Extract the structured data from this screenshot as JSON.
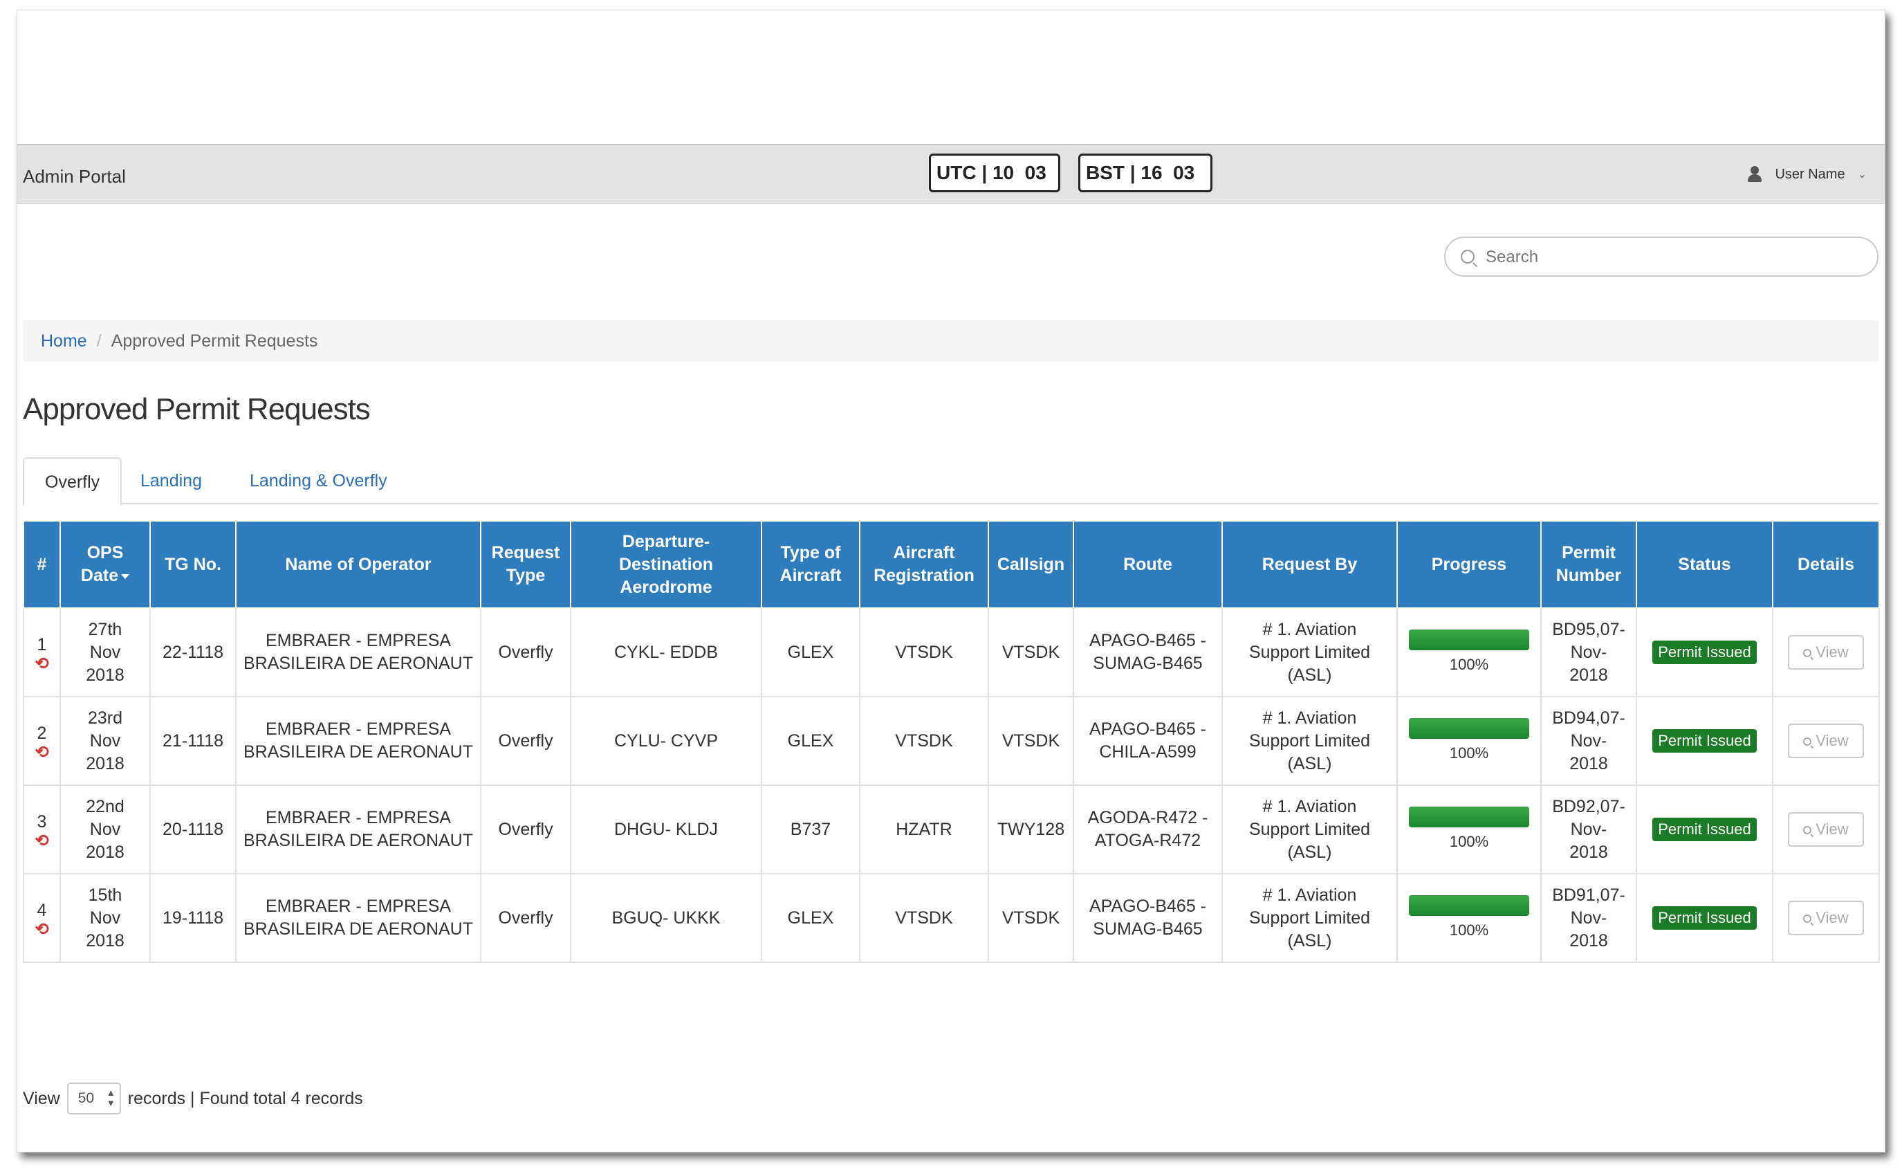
{
  "header": {
    "brand": "Admin Portal",
    "utc_clock": "UTC | 10  03",
    "bst_clock": "BST | 16  03",
    "user_name": "User Name"
  },
  "search": {
    "placeholder": "Search"
  },
  "breadcrumb": {
    "home": "Home",
    "current": "Approved Permit Requests"
  },
  "page_title": "Approved Permit Requests",
  "tabs": [
    {
      "label": "Overfly",
      "active": true
    },
    {
      "label": "Landing",
      "active": false
    },
    {
      "label": "Landing & Overfly",
      "active": false
    }
  ],
  "table": {
    "columns": [
      "#",
      "OPS Date",
      "TG No.",
      "Name of Operator",
      "Request Type",
      "Departure-Destination Aerodrome",
      "Type of Aircraft",
      "Aircraft Registration",
      "Callsign",
      "Route",
      "Request By",
      "Progress",
      "Permit Number",
      "Status",
      "Details"
    ],
    "rows": [
      {
        "num": "1",
        "date": [
          "27th",
          "Nov",
          "2018"
        ],
        "tg": "22-1118",
        "operator": [
          "EMBRAER - EMPRESA",
          "BRASILEIRA DE AERONAUT"
        ],
        "type": "Overfly",
        "aerodrome": "CYKL- EDDB",
        "aircraft": "GLEX",
        "registration": "VTSDK",
        "callsign": "VTSDK",
        "route": [
          "APAGO-B465 -",
          "SUMAG-B465"
        ],
        "request_by": [
          "# 1. Aviation",
          "Support Limited",
          "(ASL)"
        ],
        "progress": "100%",
        "progress_value": 1.0,
        "permit": [
          "BD95,07-",
          "Nov-",
          "2018"
        ],
        "status": "Permit Issued",
        "details": "View"
      },
      {
        "num": "2",
        "date": [
          "23rd",
          "Nov",
          "2018"
        ],
        "tg": "21-1118",
        "operator": [
          "EMBRAER - EMPRESA",
          "BRASILEIRA DE AERONAUT"
        ],
        "type": "Overfly",
        "aerodrome": "CYLU- CYVP",
        "aircraft": "GLEX",
        "registration": "VTSDK",
        "callsign": "VTSDK",
        "route": [
          "APAGO-B465 -",
          "CHILA-A599"
        ],
        "request_by": [
          "# 1. Aviation",
          "Support Limited",
          "(ASL)"
        ],
        "progress": "100%",
        "progress_value": 1.0,
        "permit": [
          "BD94,07-",
          "Nov-",
          "2018"
        ],
        "status": "Permit Issued",
        "details": "View"
      },
      {
        "num": "3",
        "date": [
          "22nd",
          "Nov",
          "2018"
        ],
        "tg": "20-1118",
        "operator": [
          "EMBRAER - EMPRESA",
          "BRASILEIRA DE AERONAUT"
        ],
        "type": "Overfly",
        "aerodrome": "DHGU- KLDJ",
        "aircraft": "B737",
        "registration": "HZATR",
        "callsign": "TWY128",
        "route": [
          "AGODA-R472 -",
          "ATOGA-R472"
        ],
        "request_by": [
          "# 1. Aviation",
          "Support Limited",
          "(ASL)"
        ],
        "progress": "100%",
        "progress_value": 1.0,
        "permit": [
          "BD92,07-",
          "Nov-",
          "2018"
        ],
        "status": "Permit Issued",
        "details": "View"
      },
      {
        "num": "4",
        "date": [
          "15th",
          "Nov",
          "2018"
        ],
        "tg": "19-1118",
        "operator": [
          "EMBRAER - EMPRESA",
          "BRASILEIRA DE AERONAUT"
        ],
        "type": "Overfly",
        "aerodrome": "BGUQ- UKKK",
        "aircraft": "GLEX",
        "registration": "VTSDK",
        "callsign": "VTSDK",
        "route": [
          "APAGO-B465 -",
          "SUMAG-B465"
        ],
        "request_by": [
          "# 1. Aviation",
          "Support Limited",
          "(ASL)"
        ],
        "progress": "100%",
        "progress_value": 1.0,
        "permit": [
          "BD91,07-",
          "Nov-",
          "2018"
        ],
        "status": "Permit Issued",
        "details": "View"
      }
    ]
  },
  "footer": {
    "view_label": "View",
    "page_size": "50",
    "records_text": "records | Found total 4 records"
  },
  "colors": {
    "header_blue": "#2f7cbd",
    "link_blue": "#2a6ebb",
    "status_green": "#1c7b27",
    "progress_green": "#28a03a",
    "undo_red": "#d9342b"
  }
}
